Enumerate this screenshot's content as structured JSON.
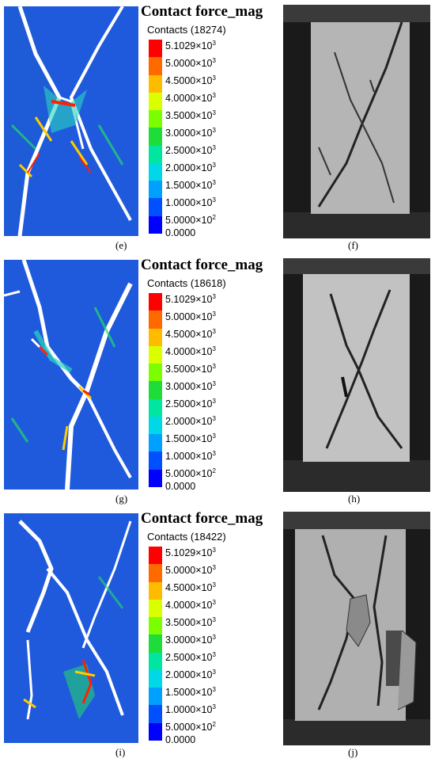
{
  "colors": [
    "#ff0000",
    "#ff6a00",
    "#ffbb00",
    "#d9ff00",
    "#7bff00",
    "#1edc3a",
    "#00e6a0",
    "#00d8e8",
    "#00a0ff",
    "#0050ff",
    "#0000ff"
  ],
  "legend_title": "Contact force_mag",
  "legend_values": [
    {
      "mant": "5.1029",
      "exp": "3"
    },
    {
      "mant": "5.0000",
      "exp": "3"
    },
    {
      "mant": "4.5000",
      "exp": "3"
    },
    {
      "mant": "4.0000",
      "exp": "3"
    },
    {
      "mant": "3.5000",
      "exp": "3"
    },
    {
      "mant": "3.0000",
      "exp": "3"
    },
    {
      "mant": "2.5000",
      "exp": "3"
    },
    {
      "mant": "2.0000",
      "exp": "3"
    },
    {
      "mant": "1.5000",
      "exp": "3"
    },
    {
      "mant": "1.0000",
      "exp": "3"
    },
    {
      "mant": "5.0000",
      "exp": "2"
    },
    {
      "mant": "0.0000",
      "exp": ""
    }
  ],
  "panels": [
    {
      "title": "Contact force_mag",
      "contacts": "Contacts (18274)",
      "sim_caption": "(e)",
      "photo_caption": "(f)"
    },
    {
      "title": "Contact force_mag",
      "contacts": "Contacts (18618)",
      "sim_caption": "(g)",
      "photo_caption": "(h)"
    },
    {
      "title": "Contact force_mag",
      "contacts": "Contacts (18422)",
      "sim_caption": "(i)",
      "photo_caption": "(j)"
    }
  ]
}
